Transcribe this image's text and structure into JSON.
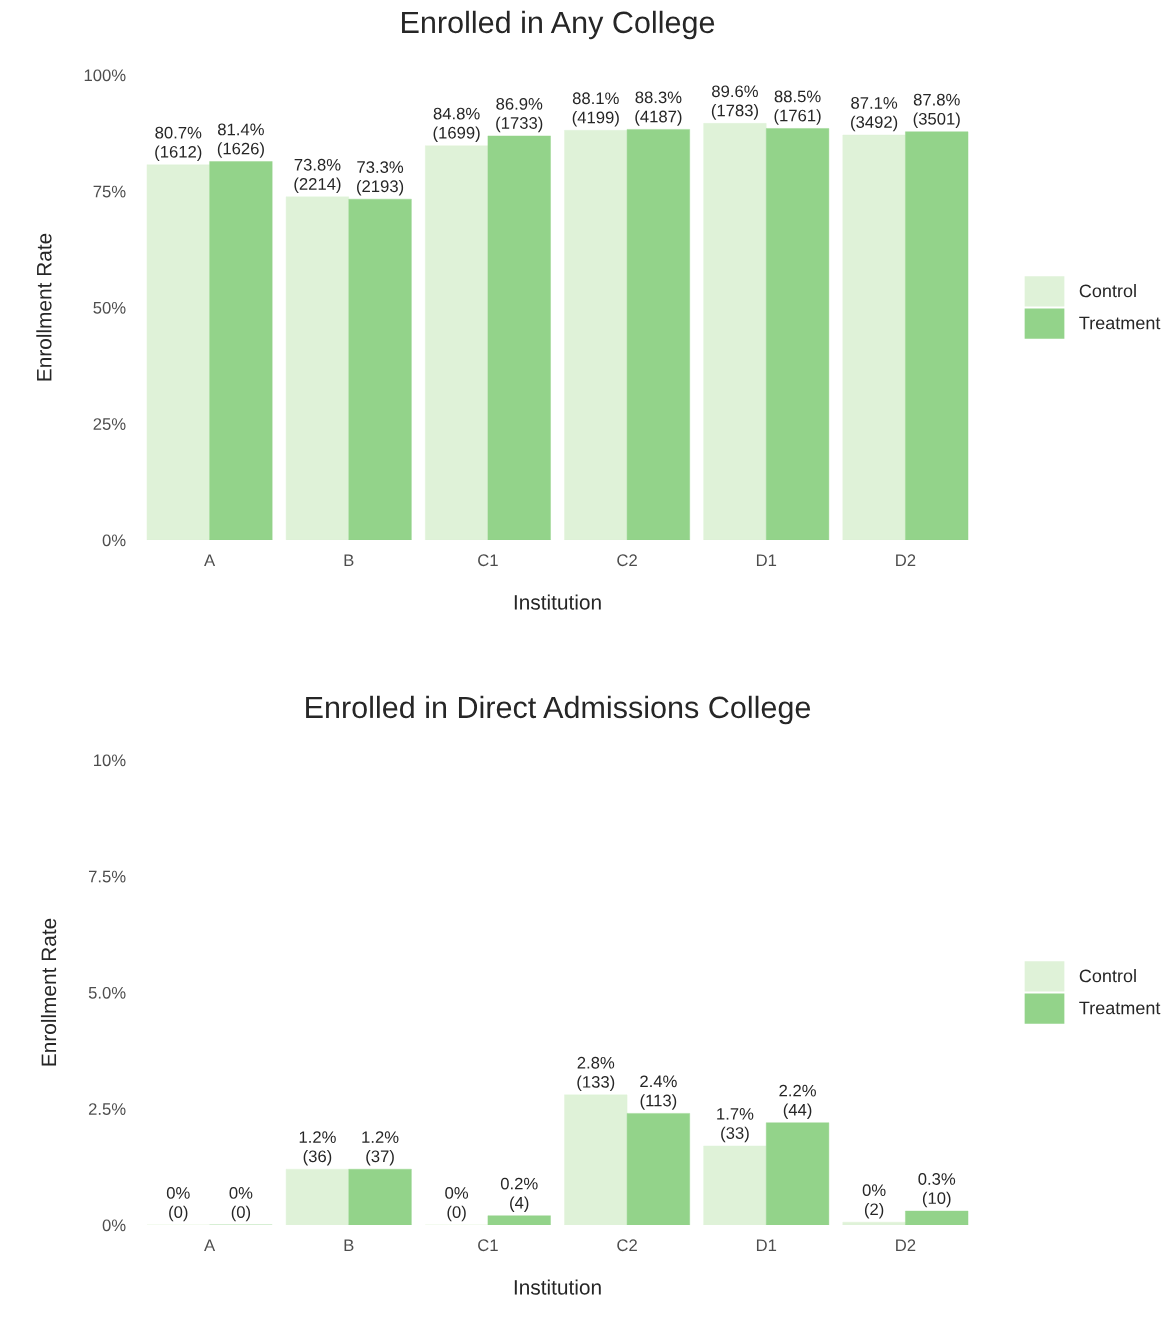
{
  "chart_data": [
    {
      "type": "bar",
      "title": "Enrolled in Any College",
      "xlabel": "Institution",
      "ylabel": "Enrollment Rate",
      "categories": [
        "A",
        "B",
        "C1",
        "C2",
        "D1",
        "D2"
      ],
      "ylim": [
        0,
        100
      ],
      "yticks": [
        {
          "value": 0,
          "label": "0%"
        },
        {
          "value": 25,
          "label": "25%"
        },
        {
          "value": 50,
          "label": "50%"
        },
        {
          "value": 75,
          "label": "75%"
        },
        {
          "value": 100,
          "label": "100%"
        }
      ],
      "grid": false,
      "legend": "right",
      "series": [
        {
          "name": "Control",
          "color": "#dff2d8",
          "values": [
            80.7,
            73.8,
            84.8,
            88.1,
            89.6,
            87.1
          ],
          "value_labels": [
            "80.7%\n(1612)",
            "73.8%\n(2214)",
            "84.8%\n(1699)",
            "88.1%\n(4199)",
            "89.6%\n(1783)",
            "87.1%\n(3492)"
          ]
        },
        {
          "name": "Treatment",
          "color": "#93d38a",
          "values": [
            81.4,
            73.3,
            86.9,
            88.3,
            88.5,
            87.8
          ],
          "value_labels": [
            "81.4%\n(1626)",
            "73.3%\n(2193)",
            "86.9%\n(1733)",
            "88.3%\n(4187)",
            "88.5%\n(1761)",
            "87.8%\n(3501)"
          ]
        }
      ]
    },
    {
      "type": "bar",
      "title": "Enrolled in Direct Admissions College",
      "xlabel": "Institution",
      "ylabel": "Enrollment Rate",
      "categories": [
        "A",
        "B",
        "C1",
        "C2",
        "D1",
        "D2"
      ],
      "ylim": [
        0,
        10
      ],
      "yticks": [
        {
          "value": 0,
          "label": "0%"
        },
        {
          "value": 2.5,
          "label": "2.5%"
        },
        {
          "value": 5,
          "label": "5.0%"
        },
        {
          "value": 7.5,
          "label": "7.5%"
        },
        {
          "value": 10,
          "label": "10%"
        }
      ],
      "grid": false,
      "legend": "right",
      "series": [
        {
          "name": "Control",
          "color": "#dff2d8",
          "values": [
            0,
            1.2,
            0,
            2.8,
            1.7,
            0.06
          ],
          "value_labels": [
            "0%\n(0)",
            "1.2%\n(36)",
            "0%\n(0)",
            "2.8%\n(133)",
            "1.7%\n(33)",
            "0%\n(2)"
          ]
        },
        {
          "name": "Treatment",
          "color": "#93d38a",
          "values": [
            0,
            1.2,
            0.2,
            2.4,
            2.2,
            0.3
          ],
          "value_labels": [
            "0%\n(0)",
            "1.2%\n(37)",
            "0.2%\n(4)",
            "2.4%\n(113)",
            "2.2%\n(44)",
            "0.3%\n(10)"
          ]
        }
      ]
    }
  ]
}
